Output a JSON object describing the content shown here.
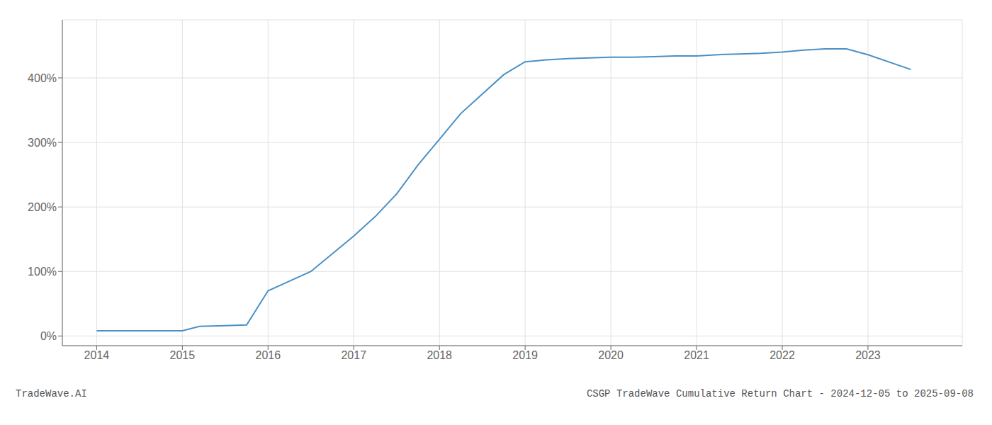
{
  "chart_data": {
    "type": "line",
    "title": "CSGP TradeWave Cumulative Return Chart - 2024-12-05 to 2025-09-08",
    "annotations": [
      "TradeWave.AI"
    ],
    "color": "#4a90c4",
    "x": [
      2014.0,
      2014.2,
      2014.5,
      2014.8,
      2015.0,
      2015.2,
      2015.5,
      2015.75,
      2016.0,
      2016.25,
      2016.5,
      2017.0,
      2017.25,
      2017.5,
      2017.75,
      2018.0,
      2018.25,
      2018.5,
      2018.75,
      2019.0,
      2019.25,
      2019.5,
      2019.75,
      2020.0,
      2020.25,
      2020.5,
      2020.75,
      2021.0,
      2021.25,
      2021.5,
      2021.75,
      2022.0,
      2022.25,
      2022.5,
      2022.75,
      2023.0,
      2023.5
    ],
    "values": [
      8,
      8,
      8,
      8,
      8,
      15,
      16,
      17,
      70,
      85,
      100,
      155,
      185,
      220,
      265,
      305,
      345,
      375,
      405,
      425,
      428,
      430,
      431,
      432,
      432,
      433,
      434,
      434,
      436,
      437,
      438,
      440,
      443,
      445,
      445,
      436,
      413
    ],
    "xlim": [
      2013.6,
      2024.1
    ],
    "ylim": [
      -15,
      490
    ],
    "xticks": [
      2014,
      2015,
      2016,
      2017,
      2018,
      2019,
      2020,
      2021,
      2022,
      2023
    ],
    "yticks": [
      {
        "value": 0,
        "label": "0%"
      },
      {
        "value": 100,
        "label": "100%"
      },
      {
        "value": 200,
        "label": "200%"
      },
      {
        "value": 300,
        "label": "300%"
      },
      {
        "value": 400,
        "label": "400%"
      }
    ],
    "grid": true
  }
}
